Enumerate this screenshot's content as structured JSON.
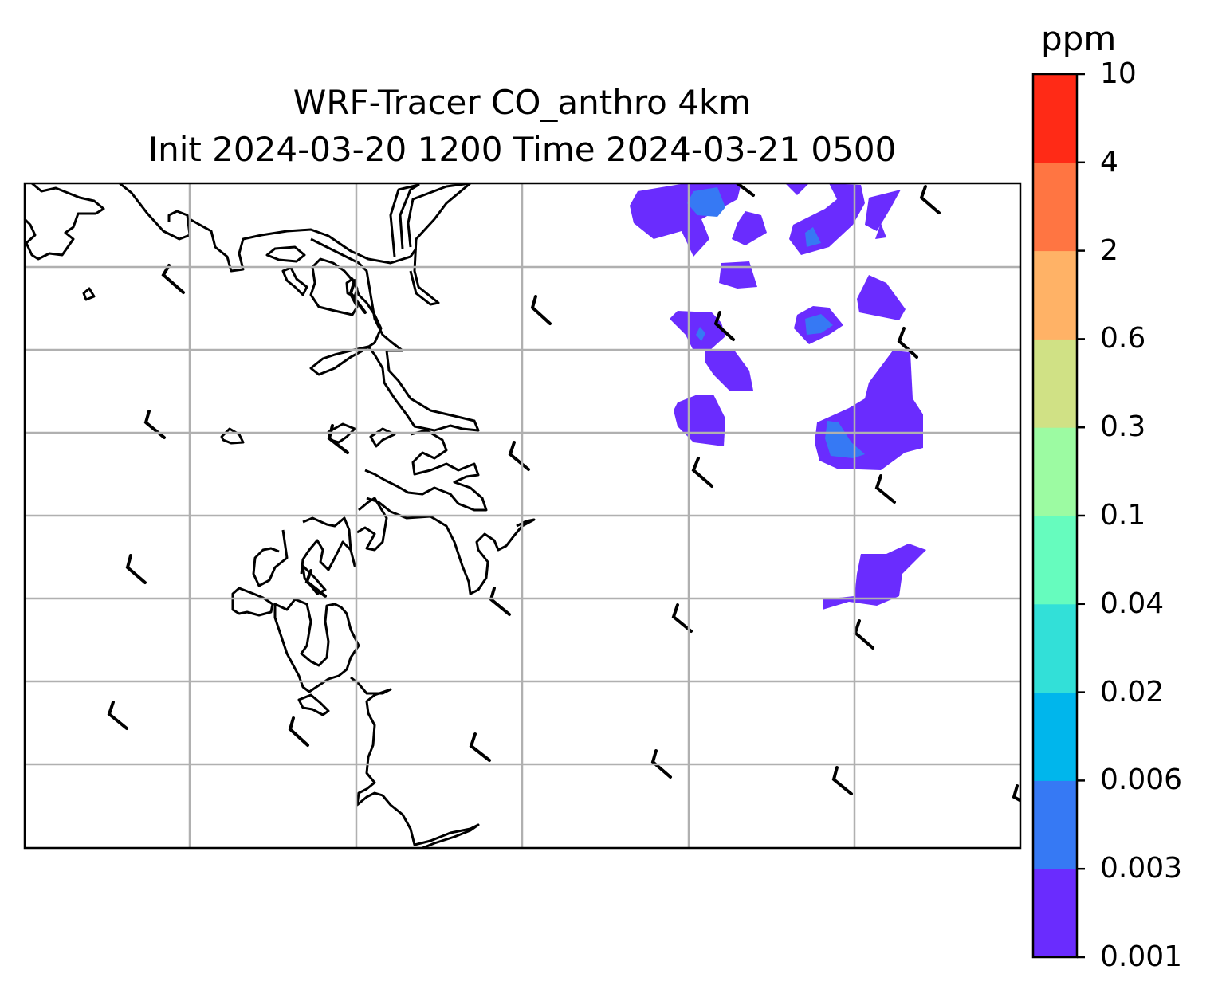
{
  "title": {
    "line1": "WRF-Tracer CO_anthro 4km",
    "line2": "Init 2024-03-20 1200 Time 2024-03-21 0500"
  },
  "colorbar": {
    "unit": "ppm",
    "levels": [
      "0.001",
      "0.003",
      "0.006",
      "0.02",
      "0.04",
      "0.1",
      "0.3",
      "0.6",
      "2",
      "4",
      "10"
    ],
    "colors": [
      "#6a2cfe",
      "#3679f4",
      "#00b6ec",
      "#32e0d8",
      "#66fcbe",
      "#9cfba2",
      "#d0e185",
      "#ffb266",
      "#ff7542",
      "#ff2a16"
    ]
  },
  "map": {
    "gridlines": true,
    "coastlines": true,
    "wind_barbs": true
  }
}
